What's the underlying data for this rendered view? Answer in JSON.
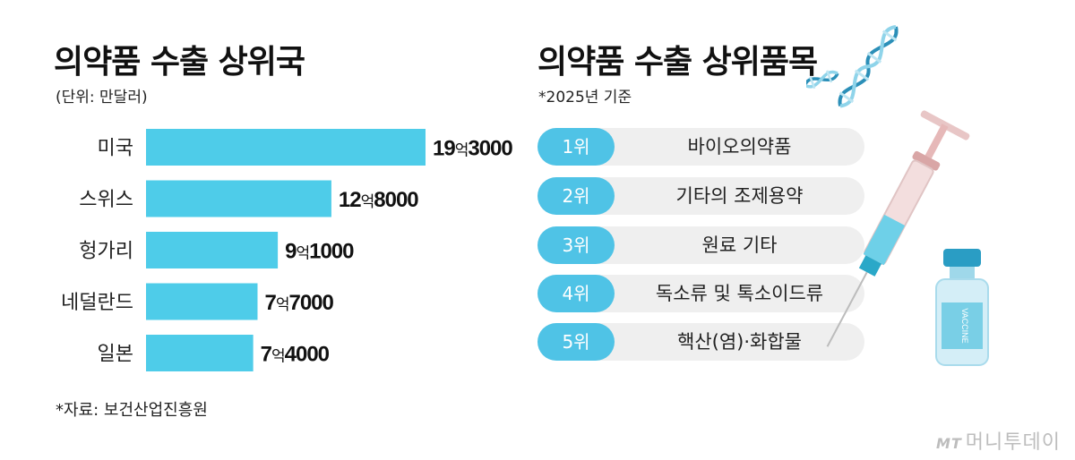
{
  "left": {
    "title": "의약품 수출 상위국",
    "unit_note": "(단위: 만달러)",
    "source": "*자료: 보건산업진흥원"
  },
  "right": {
    "title": "의약품 수출 상위품목",
    "note": "*2025년 기준",
    "items": [
      {
        "rank": "1위",
        "name": "바이오의약품"
      },
      {
        "rank": "2위",
        "name": "기타의 조제용약"
      },
      {
        "rank": "3위",
        "name": "원료 기타"
      },
      {
        "rank": "4위",
        "name": "독소류 및 톡소이드류"
      },
      {
        "rank": "5위",
        "name": "핵산(염)·화합물"
      }
    ],
    "illustration": {
      "vial_label": "VACCINE"
    }
  },
  "watermark": {
    "logo": "MT",
    "text": "머니투데이"
  },
  "colors": {
    "bar": "#4ecce9",
    "pill": "#4fc3e6",
    "row_bg": "#efefef"
  },
  "chart_data": {
    "type": "bar",
    "orientation": "horizontal",
    "title": "의약품 수출 상위국",
    "unit": "만달러",
    "categories": [
      "미국",
      "스위스",
      "헝가리",
      "네덜란드",
      "일본"
    ],
    "values": [
      193000,
      128000,
      91000,
      77000,
      74000
    ],
    "value_labels": [
      {
        "big": "19",
        "unit": "억",
        "rest": "3000"
      },
      {
        "big": "12",
        "unit": "억",
        "rest": "8000"
      },
      {
        "big": "9",
        "unit": "억",
        "rest": "1000"
      },
      {
        "big": "7",
        "unit": "억",
        "rest": "7000"
      },
      {
        "big": "7",
        "unit": "억",
        "rest": "4000"
      }
    ],
    "xlim": [
      0,
      193000
    ],
    "grid": false,
    "legend": "none"
  }
}
